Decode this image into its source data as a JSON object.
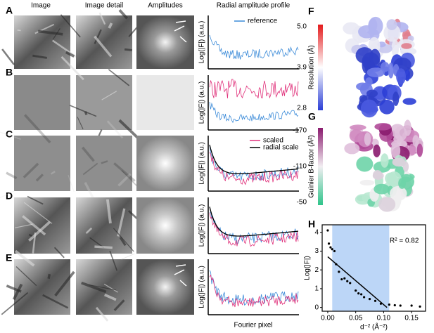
{
  "panels": {
    "a": "A",
    "b": "B",
    "c": "C",
    "d": "D",
    "e": "E",
    "f": "F",
    "g": "G",
    "h": "H"
  },
  "headers": [
    "Image",
    "Image detail",
    "Amplitudes",
    "Radial amplitude profile"
  ],
  "profile_ylabel": "Log(|F|) (a.u.)",
  "profile_xlabel": "Fourier pixel",
  "legends": {
    "reference": "reference",
    "scaled": "scaled",
    "radial_scale": "radial scale"
  },
  "resolution_colorbar": {
    "title": "Resolution (Å)",
    "ticks": [
      "5.0",
      "3.9",
      "2.8"
    ]
  },
  "bfactor_colorbar": {
    "title": "Guinier B-factor (Å²)",
    "ticks": [
      "-170",
      "-110",
      "-50"
    ]
  },
  "chart_data": {
    "type": "scatter",
    "xlabel": "d⁻² (Å⁻²)",
    "ylabel": "Log(|F|)",
    "annotation": "R² = 0.82",
    "x": [
      0.0,
      0.002,
      0.005,
      0.008,
      0.012,
      0.015,
      0.02,
      0.025,
      0.03,
      0.035,
      0.04,
      0.05,
      0.055,
      0.06,
      0.065,
      0.075,
      0.085,
      0.095,
      0.11,
      0.12,
      0.13,
      0.15,
      0.165
    ],
    "values": [
      4.1,
      3.4,
      3.2,
      3.1,
      3.0,
      2.3,
      1.9,
      1.5,
      1.55,
      1.4,
      1.3,
      0.9,
      0.75,
      0.7,
      0.55,
      0.45,
      0.35,
      0.2,
      0.15,
      0.12,
      0.1,
      0.1,
      0.05
    ],
    "color": "#000000",
    "fit": {
      "x": [
        0,
        0.106
      ],
      "y": [
        2.7,
        0
      ]
    },
    "highlight": [
      0.008,
      0.11
    ],
    "highlight_color": "#bcd6f7",
    "xlim": [
      -0.01,
      0.175
    ],
    "ylim": [
      -0.2,
      4.4
    ],
    "xticks": [
      {
        "value": 0,
        "label": "0.00"
      },
      0.05,
      {
        "value": 0.1,
        "label": "0.10"
      },
      0.15
    ],
    "yticks": [
      0,
      1,
      2,
      3,
      4
    ]
  }
}
